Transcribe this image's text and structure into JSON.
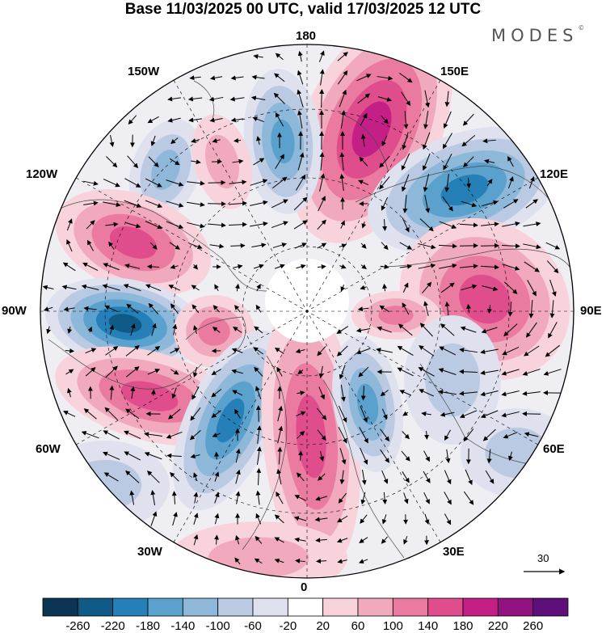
{
  "title": "Base 11/03/2025 00 UTC, valid 17/03/2025 12 UTC",
  "brand": "MODES",
  "brand_mark": "©",
  "longitude_labels": {
    "lon_0": "0",
    "lon_30e": "30E",
    "lon_60e": "60E",
    "lon_90e": "90E",
    "lon_120e": "120E",
    "lon_150e": "150E",
    "lon_180": "180",
    "lon_150w": "150W",
    "lon_120w": "120W",
    "lon_90w": "90W",
    "lon_60w": "60W",
    "lon_30w": "30W"
  },
  "reference_vector": "30",
  "colorbar": {
    "labels": [
      "-260",
      "-220",
      "-180",
      "-140",
      "-100",
      "-60",
      "-20",
      "20",
      "60",
      "100",
      "140",
      "180",
      "220",
      "260"
    ],
    "colors": [
      "#0b3554",
      "#0f5a86",
      "#2680b8",
      "#5aa1cd",
      "#8db8d9",
      "#b9cae2",
      "#dfe1ef",
      "#ffffff",
      "#f8d3dc",
      "#f1a9bd",
      "#ea7aa0",
      "#df4d8c",
      "#c31f86",
      "#921282",
      "#5e0f7a"
    ]
  },
  "colors": {
    "land_outline": "#4a4a4a",
    "graticule": "#000000",
    "arrow": "#000000"
  }
}
